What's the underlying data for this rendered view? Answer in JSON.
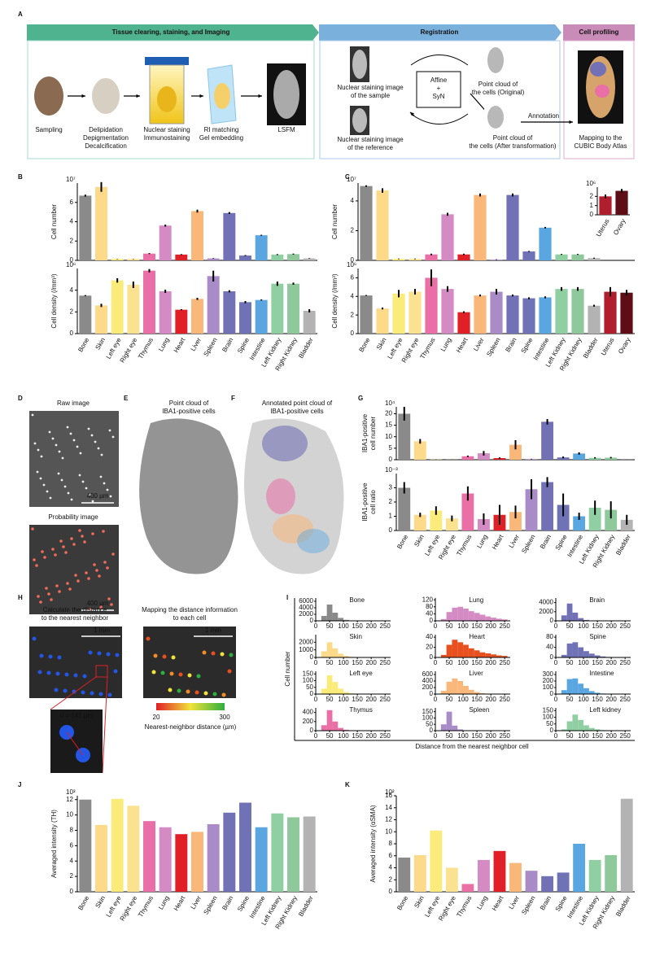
{
  "panel_letters": [
    "A",
    "B",
    "C",
    "D",
    "E",
    "F",
    "G",
    "H",
    "I",
    "J",
    "K"
  ],
  "A": {
    "headers": [
      "Tissue clearing, staining, and Imaging",
      "Registration",
      "Cell profiling"
    ],
    "steps": [
      [
        "Sampling"
      ],
      [
        "Delipidation",
        "Depigmentation",
        "Decalcification"
      ],
      [
        "Nuclear staining",
        "Immunostaining"
      ],
      [
        "RI matching",
        "Gel embedding"
      ],
      [
        "LSFM"
      ]
    ],
    "registration": {
      "sample": [
        "Nuclear staining image",
        "of the sample"
      ],
      "reference": [
        "Nuclear staining image",
        "of the reference"
      ],
      "method": [
        "Affine",
        "+",
        "SyN"
      ],
      "original": [
        "Point cloud of",
        "the cells (Original)"
      ],
      "transformed": [
        "Point cloud of",
        "the cells (After transformation)"
      ],
      "annotation": "Annotation"
    },
    "profiling": [
      "Mapping to the",
      "CUBIC Body Atlas"
    ]
  },
  "D": {
    "raw": "Raw image",
    "probability": "Probability image",
    "scale": "400 µm"
  },
  "E": {
    "title": [
      "Point cloud of",
      "IBA1-positive cells"
    ]
  },
  "F": {
    "title": [
      "Annotated point cloud of",
      "IBA1-positive cells"
    ]
  },
  "H": {
    "left": [
      "Calculate the distance",
      "to the nearest neighbor"
    ],
    "right": [
      "Mapping the distance information",
      "to each cell"
    ],
    "scale": "1 mm",
    "distance": "d = 141 µm",
    "colorbar": {
      "min": 20,
      "max": 300,
      "label": "Nearest-neighbor distance (µm)"
    }
  },
  "chart_data": [
    {
      "type": "bar",
      "panel": "B",
      "categories": [
        "Bone",
        "Skin",
        "Left eye",
        "Right eye",
        "Thymus",
        "Lung",
        "Heart",
        "Liver",
        "Spleen",
        "Brain",
        "Spine",
        "Intestine",
        "Left Kidney",
        "Right Kidney",
        "Bladder"
      ],
      "colors": [
        "#8a8a8a",
        "#fdd98a",
        "#fbeb7a",
        "#fbe290",
        "#e96fa6",
        "#d48ac3",
        "#e01f26",
        "#f9b77a",
        "#a98bc7",
        "#7271b5",
        "#6f73b6",
        "#5aa6e0",
        "#8fcfa2",
        "#8ec89b",
        "#b3b3b3"
      ],
      "subplots": [
        {
          "ylabel": [
            "Cell number"
          ],
          "exponent": "10⁷",
          "ylim": [
            0,
            8
          ],
          "yticks": [
            0,
            2,
            4,
            6
          ],
          "values": [
            6.7,
            7.6,
            0.15,
            0.15,
            0.7,
            3.6,
            0.6,
            5.1,
            0.2,
            4.9,
            0.5,
            2.6,
            0.6,
            0.65,
            0.2
          ],
          "errors": [
            0.1,
            0.5,
            0.02,
            0.02,
            0.05,
            0.1,
            0.05,
            0.15,
            0.03,
            0.1,
            0.05,
            0.05,
            0.05,
            0.05,
            0.03
          ]
        },
        {
          "ylabel": [
            "Cell density (/mm³)"
          ],
          "exponent": "10⁶",
          "ylim": [
            0,
            6
          ],
          "yticks": [
            0,
            2,
            4
          ],
          "values": [
            3.5,
            2.6,
            4.9,
            4.5,
            5.8,
            3.9,
            2.2,
            3.2,
            5.3,
            3.9,
            2.9,
            3.1,
            4.6,
            4.6,
            2.1
          ],
          "errors": [
            0.05,
            0.15,
            0.2,
            0.3,
            0.15,
            0.15,
            0.05,
            0.1,
            0.5,
            0.1,
            0.1,
            0.05,
            0.2,
            0.1,
            0.15
          ]
        }
      ]
    },
    {
      "type": "bar",
      "panel": "C",
      "categories": [
        "Bone",
        "Skin",
        "Left eye",
        "Right eye",
        "Thymus",
        "Lung",
        "Heart",
        "Liver",
        "Spleen",
        "Brain",
        "Spine",
        "Intestine",
        "Left Kidney",
        "Right Kidney",
        "Bladder",
        "Uterus",
        "Ovary"
      ],
      "colors": [
        "#8a8a8a",
        "#fdd98a",
        "#fbeb7a",
        "#fbe290",
        "#e96fa6",
        "#d48ac3",
        "#e01f26",
        "#f9b77a",
        "#a98bc7",
        "#7271b5",
        "#6f73b6",
        "#5aa6e0",
        "#8fcfa2",
        "#8ec89b",
        "#b3b3b3",
        "#b01e2e",
        "#5e0d16"
      ],
      "subplots": [
        {
          "ylabel": [
            "Cell number"
          ],
          "exponent": "10⁷",
          "ylim": [
            0,
            5.2
          ],
          "yticks": [
            0,
            2,
            4
          ],
          "values": [
            5.0,
            4.7,
            0.1,
            0.1,
            0.4,
            3.1,
            0.4,
            4.4,
            0.05,
            4.4,
            0.6,
            2.2,
            0.4,
            0.4,
            0.15,
            null,
            null
          ],
          "errors": [
            0.05,
            0.15,
            0.02,
            0.02,
            0.05,
            0.1,
            0.05,
            0.1,
            0.02,
            0.1,
            0.03,
            0.05,
            0.03,
            0.03,
            0.03,
            null,
            null
          ]
        },
        {
          "ylabel": [
            "Cell density (/mm³)"
          ],
          "exponent": "10⁶",
          "ylim": [
            0,
            7
          ],
          "yticks": [
            0,
            2,
            4,
            6
          ],
          "values": [
            4.1,
            2.7,
            4.3,
            4.5,
            6.0,
            4.8,
            2.3,
            4.1,
            4.5,
            4.1,
            3.8,
            3.9,
            4.8,
            4.8,
            3.0,
            4.5,
            4.4
          ],
          "errors": [
            0.05,
            0.1,
            0.4,
            0.3,
            0.9,
            0.3,
            0.1,
            0.1,
            0.3,
            0.1,
            0.1,
            0.1,
            0.2,
            0.2,
            0.1,
            0.5,
            0.3
          ]
        }
      ]
    },
    {
      "type": "bar",
      "panel": "C",
      "categories": [
        "Uterus",
        "Ovary"
      ],
      "colors": [
        "#b01e2e",
        "#5e0d16"
      ],
      "subplots": [
        {
          "ylabel": [],
          "exponent": "10⁶",
          "ylim": [
            0,
            3
          ],
          "yticks": [
            0,
            1,
            2
          ],
          "values": [
            2.0,
            2.6
          ],
          "errors": [
            0.2,
            0.2
          ]
        }
      ]
    },
    {
      "type": "bar",
      "panel": "G",
      "categories": [
        "Bone",
        "Skin",
        "Left eye",
        "Right eye",
        "Thymus",
        "Lung",
        "Heart",
        "Liver",
        "Spleen",
        "Brain",
        "Spine",
        "Intestine",
        "Left Kidney",
        "Right Kidney",
        "Bladder"
      ],
      "colors": [
        "#8a8a8a",
        "#fdd98a",
        "#fbeb7a",
        "#fbe290",
        "#e96fa6",
        "#d48ac3",
        "#e01f26",
        "#f9b77a",
        "#a98bc7",
        "#7271b5",
        "#6f73b6",
        "#5aa6e0",
        "#8fcfa2",
        "#8ec89b",
        "#b3b3b3"
      ],
      "subplots": [
        {
          "ylabel": [
            "IBA1-positive",
            "cell number"
          ],
          "exponent": "10⁴",
          "ylim": [
            0,
            23
          ],
          "yticks": [
            0,
            5,
            10,
            15,
            20
          ],
          "values": [
            20,
            8,
            0.1,
            0.05,
            1.5,
            2.8,
            0.7,
            6.5,
            0.3,
            16.5,
            1,
            2.7,
            0.8,
            0.9,
            0.05
          ],
          "errors": [
            3,
            1,
            0.05,
            0.05,
            0.3,
            1,
            0.3,
            2,
            0.1,
            1.2,
            0.4,
            0.5,
            0.3,
            0.3,
            0.05
          ]
        },
        {
          "ylabel": [
            "IBA1-positive",
            "cell ratio"
          ],
          "exponent": "10⁻³",
          "ylim": [
            0,
            4
          ],
          "yticks": [
            0,
            1,
            2,
            3
          ],
          "values": [
            3.0,
            1.1,
            1.4,
            0.85,
            2.6,
            0.8,
            1.1,
            1.3,
            2.9,
            3.4,
            1.8,
            1.0,
            1.6,
            1.45,
            0.75
          ],
          "errors": [
            0.4,
            0.15,
            0.3,
            0.2,
            0.5,
            0.4,
            0.7,
            0.45,
            0.7,
            0.35,
            0.8,
            0.25,
            0.5,
            0.6,
            0.35
          ]
        }
      ]
    },
    {
      "type": "histogram",
      "panel": "I",
      "ylabel": "Cell number",
      "xlabel": "Distance from the nearest neighbor cell",
      "xlim": [
        0,
        270
      ],
      "xticks": [
        0,
        50,
        100,
        150,
        200,
        250
      ],
      "bins": [
        0,
        20,
        40,
        60,
        80,
        100,
        120,
        140,
        160,
        180,
        200,
        220,
        240,
        260
      ],
      "panels": [
        {
          "name": "Bone",
          "color": "#8a8a8a",
          "ylim": [
            0,
            7000
          ],
          "yticks": [
            0,
            2000,
            4000,
            6000
          ],
          "counts": [
            0,
            1500,
            5000,
            2500,
            900,
            300,
            100,
            50,
            20,
            10,
            5,
            0,
            0
          ]
        },
        {
          "name": "Lung",
          "color": "#d48ac3",
          "ylim": [
            0,
            130
          ],
          "yticks": [
            0,
            40,
            80,
            120
          ],
          "counts": [
            0,
            10,
            50,
            75,
            80,
            70,
            55,
            45,
            35,
            25,
            18,
            12,
            8
          ]
        },
        {
          "name": "Brain",
          "color": "#7271b5",
          "ylim": [
            0,
            5000
          ],
          "yticks": [
            0,
            2000,
            4000
          ],
          "counts": [
            0,
            1200,
            3800,
            1800,
            600,
            200,
            80,
            30,
            10,
            5,
            0,
            0,
            0
          ]
        },
        {
          "name": "Skin",
          "color": "#fdd98a",
          "ylim": [
            0,
            3000
          ],
          "yticks": [
            0,
            1000,
            2000
          ],
          "counts": [
            0,
            800,
            2000,
            1200,
            500,
            200,
            80,
            30,
            10,
            0,
            0,
            0,
            0
          ]
        },
        {
          "name": "Heart",
          "color": "#e8501f",
          "ylim": [
            0,
            45
          ],
          "yticks": [
            0,
            20,
            40
          ],
          "counts": [
            0,
            5,
            25,
            35,
            30,
            25,
            18,
            14,
            10,
            8,
            6,
            4,
            3
          ]
        },
        {
          "name": "Spine",
          "color": "#6f73b6",
          "ylim": [
            0,
            90
          ],
          "yticks": [
            0,
            40,
            80
          ],
          "counts": [
            0,
            10,
            55,
            60,
            40,
            25,
            15,
            8,
            4,
            2,
            1,
            0,
            0
          ]
        },
        {
          "name": "Left eye",
          "color": "#fbeb7a",
          "ylim": [
            0,
            170
          ],
          "yticks": [
            0,
            50,
            100,
            150
          ],
          "counts": [
            0,
            40,
            140,
            90,
            40,
            15,
            5,
            2,
            0,
            0,
            0,
            0,
            0
          ]
        },
        {
          "name": "Liver",
          "color": "#f9b77a",
          "ylim": [
            0,
            700
          ],
          "yticks": [
            0,
            200,
            400,
            600
          ],
          "counts": [
            0,
            100,
            380,
            480,
            400,
            250,
            130,
            60,
            25,
            10,
            5,
            0,
            0
          ]
        },
        {
          "name": "Intestine",
          "color": "#5aa6e0",
          "ylim": [
            0,
            350
          ],
          "yticks": [
            0,
            100,
            200,
            300
          ],
          "counts": [
            0,
            60,
            230,
            240,
            160,
            90,
            45,
            20,
            8,
            3,
            0,
            0,
            0
          ]
        },
        {
          "name": "Thymus",
          "color": "#e96fa6",
          "ylim": [
            0,
            500
          ],
          "yticks": [
            0,
            200,
            400
          ],
          "counts": [
            0,
            120,
            450,
            200,
            60,
            20,
            5,
            0,
            0,
            0,
            0,
            0,
            0
          ]
        },
        {
          "name": "Spleen",
          "color": "#a98bc7",
          "ylim": [
            0,
            180
          ],
          "yticks": [
            0,
            50,
            100,
            150
          ],
          "counts": [
            0,
            50,
            150,
            40,
            10,
            3,
            0,
            0,
            0,
            0,
            0,
            0,
            0
          ]
        },
        {
          "name": "Left kidney",
          "color": "#8fcfa2",
          "ylim": [
            0,
            170
          ],
          "yticks": [
            0,
            50,
            100,
            150
          ],
          "counts": [
            0,
            10,
            70,
            120,
            80,
            40,
            20,
            10,
            4,
            2,
            0,
            0,
            0
          ]
        }
      ]
    },
    {
      "type": "bar",
      "panel": "J",
      "categories": [
        "Bone",
        "Skin",
        "Left eye",
        "Right eye",
        "Thymus",
        "Lung",
        "Heart",
        "Liver",
        "Spleen",
        "Brain",
        "Spine",
        "Intestine",
        "Left Kidney",
        "Right Kidney",
        "Bladder"
      ],
      "colors": [
        "#8a8a8a",
        "#fdd98a",
        "#fbeb7a",
        "#fbe290",
        "#e96fa6",
        "#d48ac3",
        "#e01f26",
        "#f9b77a",
        "#a98bc7",
        "#7271b5",
        "#6f73b6",
        "#5aa6e0",
        "#8fcfa2",
        "#8ec89b",
        "#b3b3b3"
      ],
      "subplots": [
        {
          "ylabel": [
            "Averaged intensity (TH)"
          ],
          "exponent": "10³",
          "ylim": [
            0,
            12.5
          ],
          "yticks": [
            0,
            2,
            4,
            6,
            8,
            10,
            12
          ],
          "values": [
            12,
            8.7,
            12.1,
            11.2,
            9.2,
            8.4,
            7.5,
            7.8,
            8.8,
            10.3,
            11.6,
            8.4,
            10.2,
            9.7,
            9.8
          ]
        }
      ]
    },
    {
      "type": "bar",
      "panel": "K",
      "categories": [
        "Bone",
        "Skin",
        "Left eye",
        "Right eye",
        "Thymus",
        "Lung",
        "Heart",
        "Liver",
        "Spleen",
        "Brain",
        "Spine",
        "Intestine",
        "Left Kidney",
        "Right Kidney",
        "Bladder"
      ],
      "colors": [
        "#8a8a8a",
        "#fdd98a",
        "#fbeb7a",
        "#fbe290",
        "#e96fa6",
        "#d48ac3",
        "#e01f26",
        "#f9b77a",
        "#a98bc7",
        "#7271b5",
        "#6f73b6",
        "#5aa6e0",
        "#8fcfa2",
        "#8ec89b",
        "#b3b3b3"
      ],
      "subplots": [
        {
          "ylabel": [
            "Averaged intensity (αSMA)"
          ],
          "exponent": "10²",
          "ylim": [
            0,
            16
          ],
          "yticks": [
            0,
            2,
            4,
            6,
            8,
            10,
            12,
            14,
            16
          ],
          "values": [
            5.7,
            6.1,
            10.2,
            4.0,
            1.3,
            5.3,
            6.8,
            4.8,
            3.5,
            2.6,
            3.2,
            8.0,
            5.3,
            6.1,
            15.5
          ]
        }
      ]
    }
  ]
}
